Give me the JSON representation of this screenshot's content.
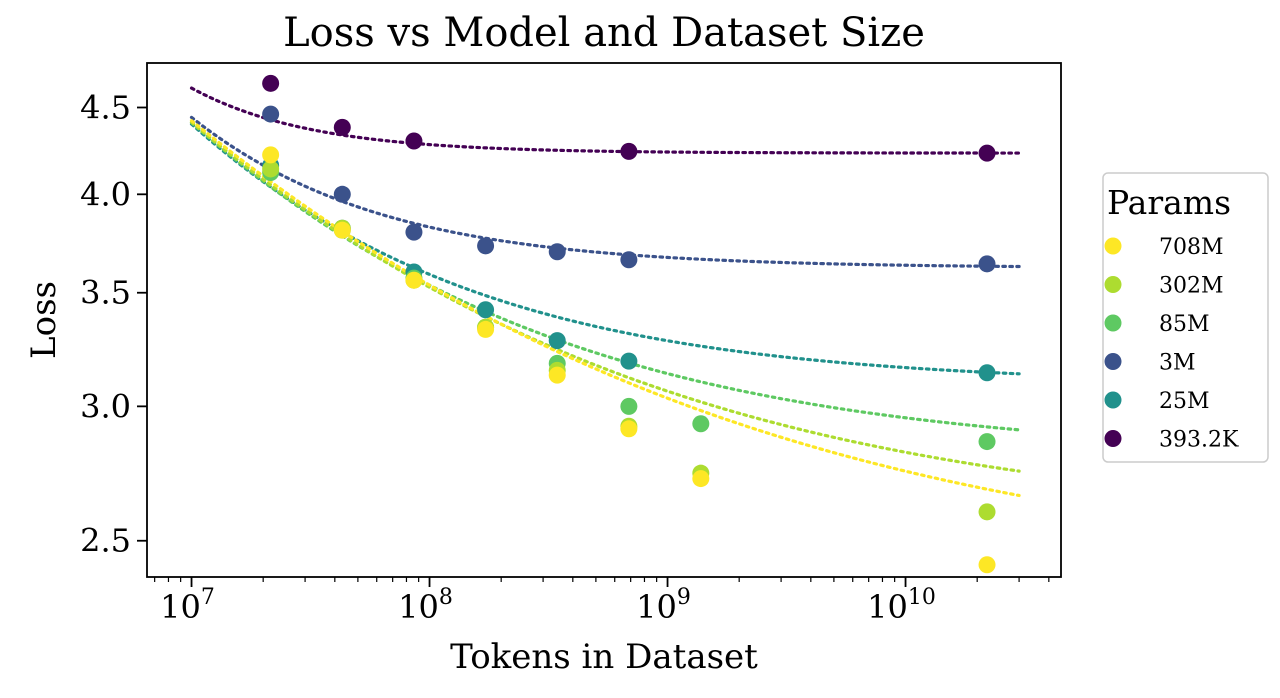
{
  "chart_data": {
    "type": "scatter",
    "title": "Loss vs Model and Dataset Size",
    "xlabel": "Tokens in Dataset",
    "ylabel": "Loss",
    "xscale": "log",
    "yscale": "log",
    "xlim": [
      6500000,
      45000000000
    ],
    "ylim": [
      2.38,
      4.78
    ],
    "x_ticks": [
      {
        "value": 10000000,
        "base": "10",
        "exp": "7"
      },
      {
        "value": 100000000,
        "base": "10",
        "exp": "8"
      },
      {
        "value": 1000000000,
        "base": "10",
        "exp": "9"
      },
      {
        "value": 10000000000,
        "base": "10",
        "exp": "10"
      }
    ],
    "y_ticks": [
      {
        "value": 2.5,
        "label": "2.5"
      },
      {
        "value": 3.0,
        "label": "3.0"
      },
      {
        "value": 3.5,
        "label": "3.5"
      },
      {
        "value": 4.0,
        "label": "4.0"
      },
      {
        "value": 4.5,
        "label": "4.5"
      }
    ],
    "grid": false,
    "legend": {
      "title": "Params",
      "placement": "outside-right"
    },
    "series": [
      {
        "name": "708M",
        "color": "#fde725",
        "x": [
          21500000,
          43000000,
          86000000,
          172000000,
          344000000,
          688000000,
          1380000000,
          22000000000
        ],
        "y": [
          4.22,
          3.81,
          3.56,
          3.33,
          3.13,
          2.91,
          2.72,
          2.42
        ],
        "fit": {
          "e": 2.37,
          "a": 2.05,
          "k": 0.245
        }
      },
      {
        "name": "302M",
        "color": "#addc30",
        "x": [
          21500000,
          43000000,
          86000000,
          172000000,
          344000000,
          688000000,
          1380000000,
          22000000000
        ],
        "y": [
          4.14,
          3.82,
          3.56,
          3.34,
          3.15,
          2.92,
          2.74,
          2.6
        ],
        "fit": {
          "e": 2.55,
          "a": 1.86,
          "k": 0.28
        }
      },
      {
        "name": "85M",
        "color": "#5ec962",
        "x": [
          21500000,
          43000000,
          86000000,
          172000000,
          344000000,
          688000000,
          1380000000,
          22000000000
        ],
        "y": [
          4.12,
          3.81,
          3.57,
          3.34,
          3.18,
          3.0,
          2.93,
          2.86
        ],
        "fit": {
          "e": 2.8,
          "a": 1.61,
          "k": 0.34
        }
      },
      {
        "name": "3M",
        "color": "#3b528b",
        "x": [
          21500000,
          43000000,
          86000000,
          172000000,
          344000000,
          688000000,
          22000000000
        ],
        "y": [
          4.46,
          4.0,
          3.8,
          3.73,
          3.7,
          3.66,
          3.64
        ],
        "fit": {
          "e": 3.62,
          "a": 0.82,
          "k": 0.6
        }
      },
      {
        "name": "25M",
        "color": "#21918c",
        "x": [
          21500000,
          43000000,
          86000000,
          172000000,
          344000000,
          688000000,
          22000000000
        ],
        "y": [
          4.16,
          3.82,
          3.6,
          3.42,
          3.28,
          3.19,
          3.14
        ],
        "fit": {
          "e": 3.09,
          "a": 1.31,
          "k": 0.42
        }
      },
      {
        "name": "393.2K",
        "color": "#440154",
        "x": [
          21500000,
          43000000,
          86000000,
          688000000,
          22000000000
        ],
        "y": [
          4.65,
          4.38,
          4.3,
          4.24,
          4.23
        ],
        "fit": {
          "e": 4.23,
          "a": 0.39,
          "k": 0.9
        }
      }
    ],
    "legend_order": [
      0,
      1,
      2,
      3,
      4,
      5
    ],
    "draw_order": [
      5,
      3,
      4,
      2,
      1,
      0
    ]
  }
}
